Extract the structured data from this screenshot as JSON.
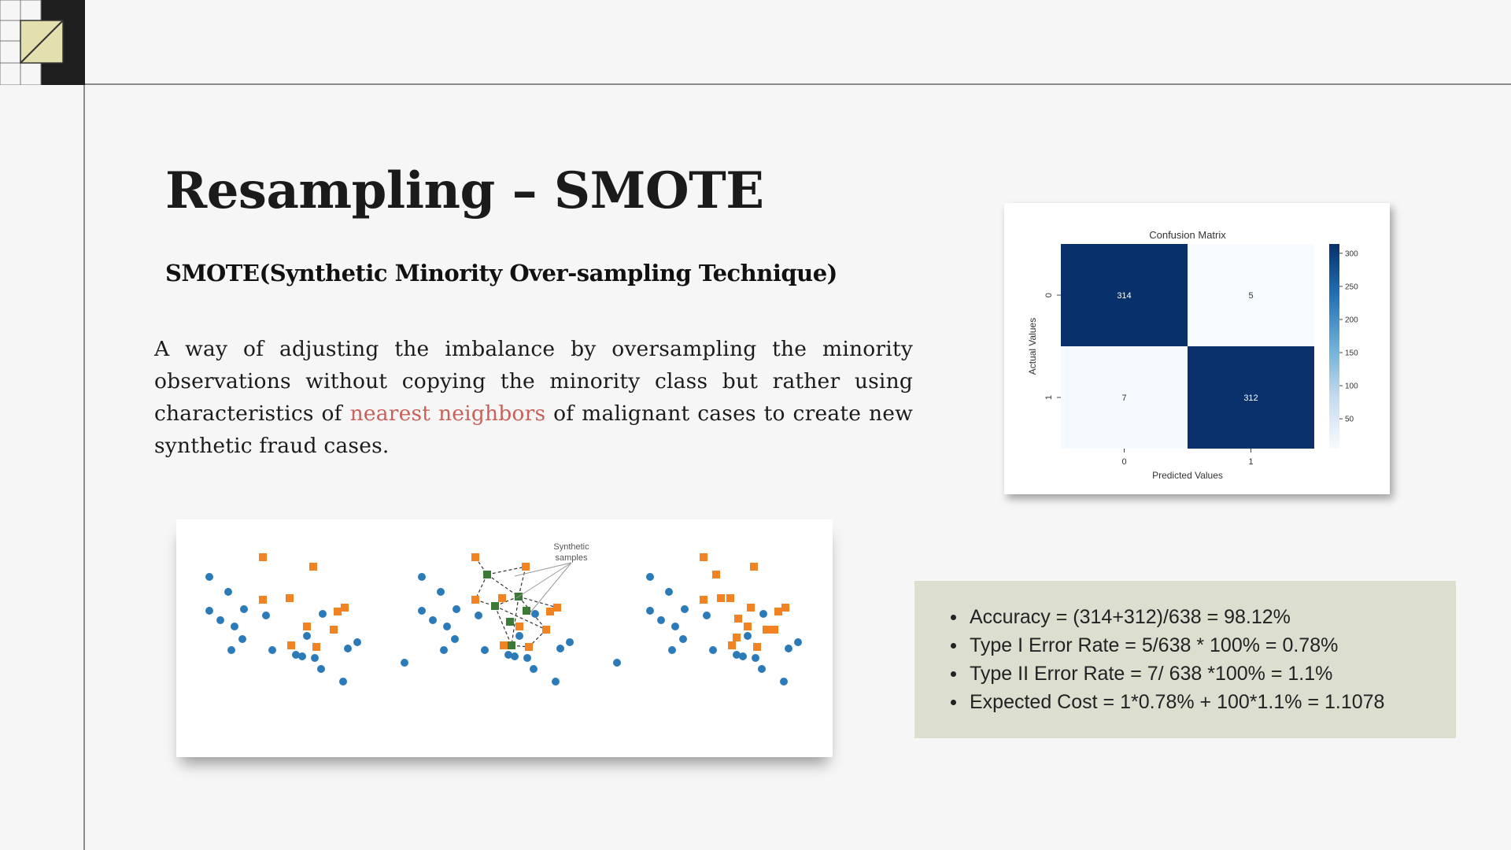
{
  "slide": {
    "title": "Resampling – SMOTE",
    "subtitle": "SMOTE(Synthetic Minority Over-sampling Technique)",
    "body_before": "A way of adjusting the imbalance by oversampling the minority observations without copying the minority class but rather using characteristics of ",
    "body_highlight": "nearest neighbors",
    "body_after": " of malignant cases to create new synthetic fraud cases.",
    "highlight_color": "#c8615a"
  },
  "chart_data": {
    "type": "heatmap",
    "title": "Confusion Matrix",
    "xlabel": "Predicted Values",
    "ylabel": "Actual Values",
    "x_categories": [
      "0",
      "1"
    ],
    "y_categories": [
      "0",
      "1"
    ],
    "values": [
      [
        314,
        5
      ],
      [
        7,
        312
      ]
    ],
    "colorbar_ticks": [
      50,
      100,
      150,
      200,
      250,
      300
    ],
    "colormap": "Blues",
    "dark_color": "#08306b",
    "light_color": "#f7fbff"
  },
  "smote_illustration": {
    "annotation": [
      "Synthetic",
      "samples"
    ],
    "majority_color": "#2b7bb9",
    "minority_color": "#f28322",
    "synthetic_color": "#3d7a3a"
  },
  "metrics": {
    "items": [
      "Accuracy = (314+312)/638 = 98.12%",
      "Type I Error Rate = 5/638 * 100% = 0.78%",
      "Type II Error Rate = 7/ 638 *100% = 1.1%",
      "Expected Cost = 1*0.78% + 100*1.1% = 1.1078"
    ]
  }
}
